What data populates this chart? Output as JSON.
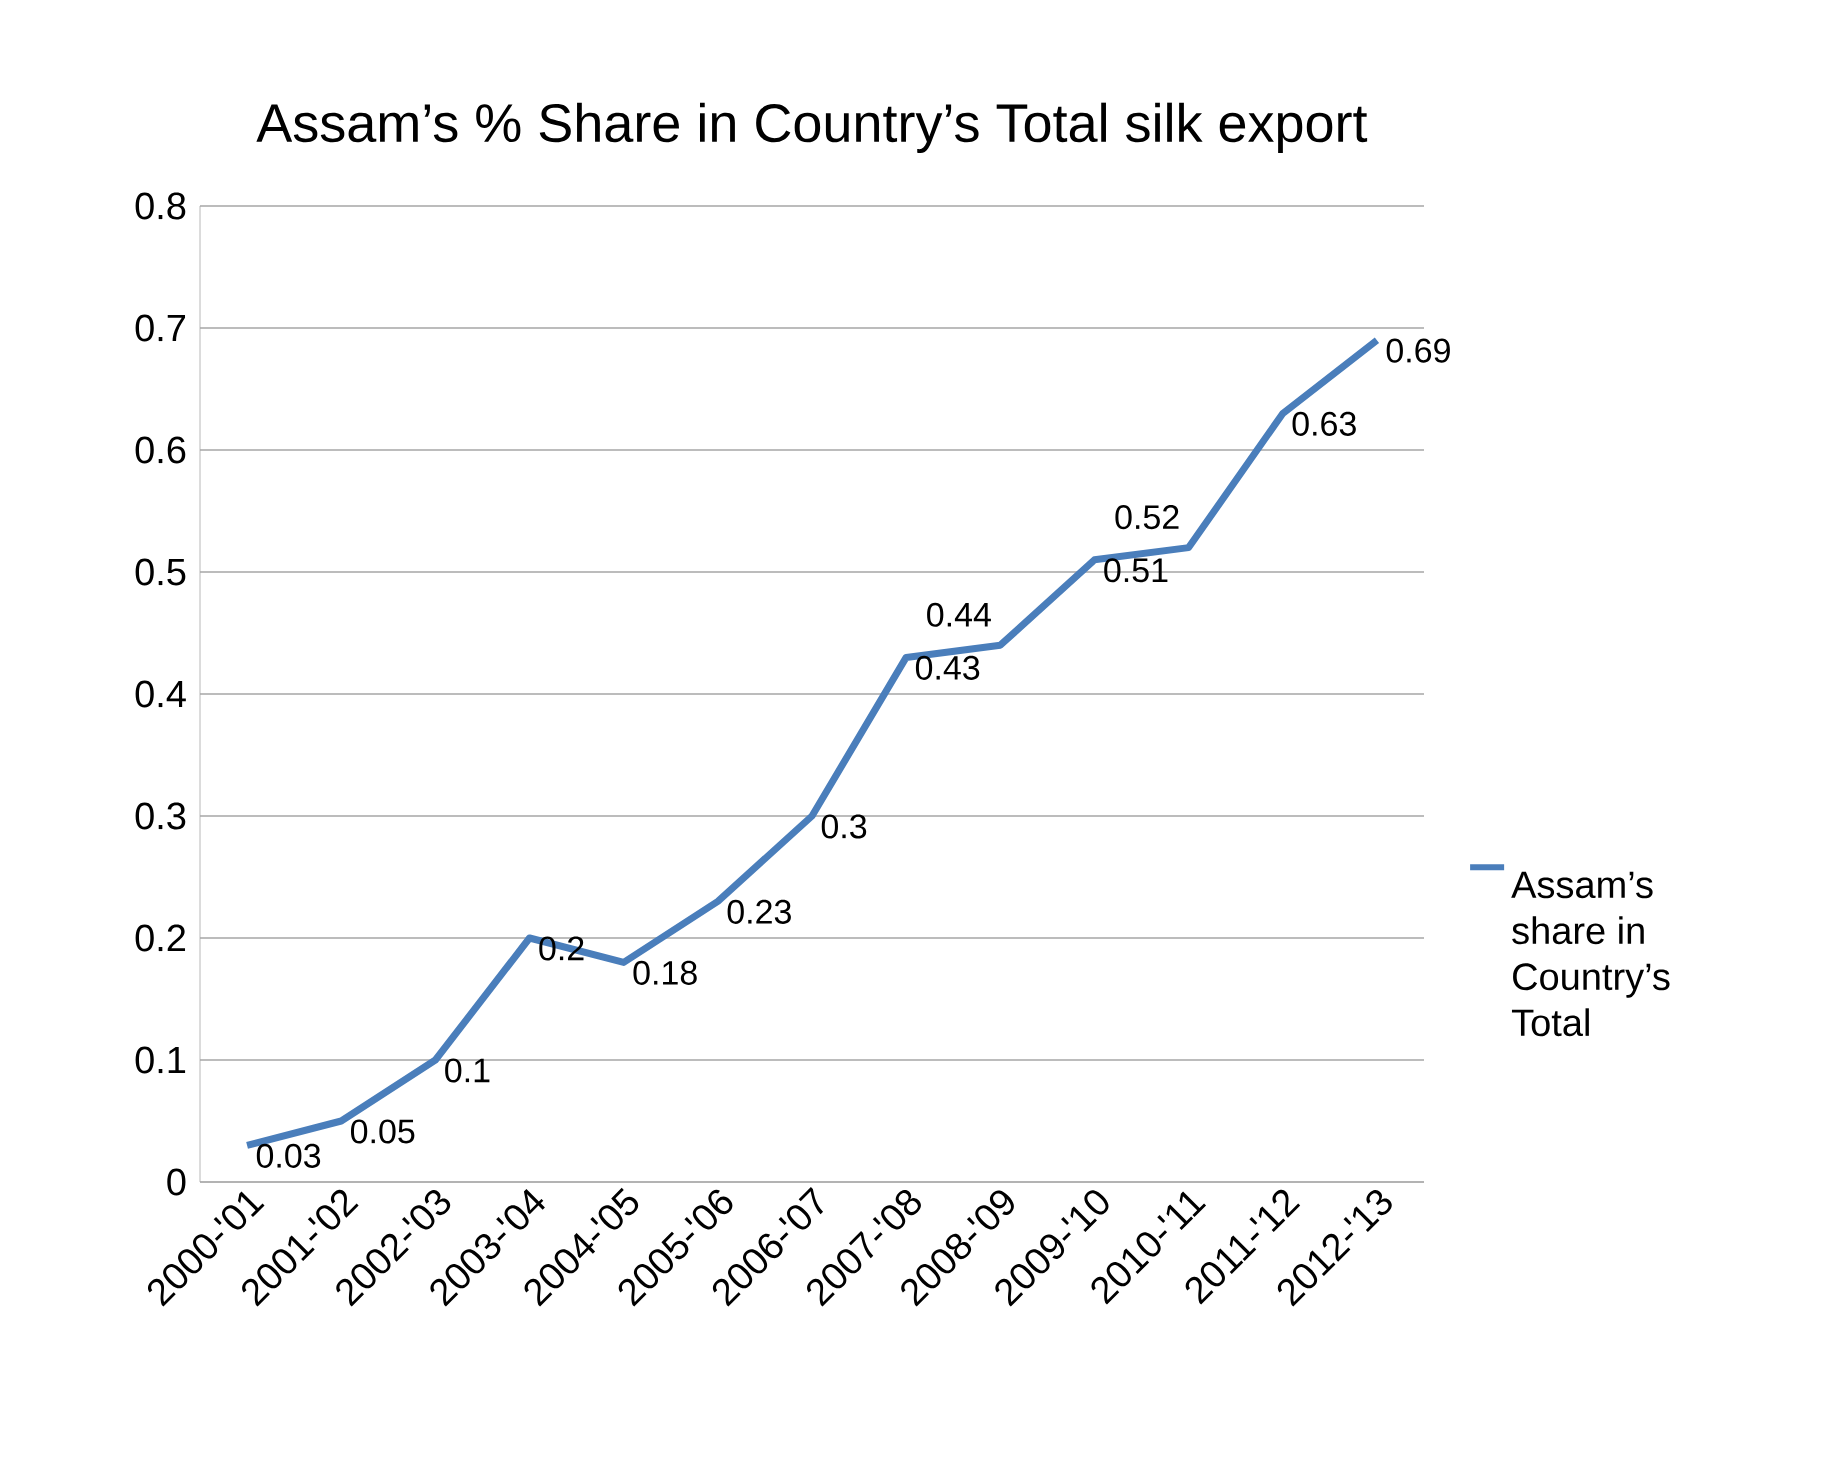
{
  "chart_data": {
    "type": "line",
    "title": "Assam’s % Share in Country’s Total silk export",
    "categories": [
      "2000-'01",
      "2001-'02",
      "2002-'03",
      "2003-'04",
      "2004-'05",
      "2005-'06",
      "2006-'07",
      "2007-'08",
      "2008-'09",
      "2009-'10",
      "2010-'11",
      "2011-'12",
      "2012-'13"
    ],
    "series": [
      {
        "name": "Assam’s share in Country’s Total",
        "color": "#4a7ebb",
        "values": [
          0.03,
          0.05,
          0.1,
          0.2,
          0.18,
          0.23,
          0.3,
          0.43,
          0.44,
          0.51,
          0.52,
          0.63,
          0.69
        ]
      }
    ],
    "ylim": [
      0,
      0.8
    ],
    "yticks": [
      0,
      0.1,
      0.2,
      0.3,
      0.4,
      0.5,
      0.6,
      0.7,
      0.8
    ],
    "grid": "y",
    "legend": "right",
    "marker": "none",
    "line_style": "solid",
    "data_labels": true
  }
}
